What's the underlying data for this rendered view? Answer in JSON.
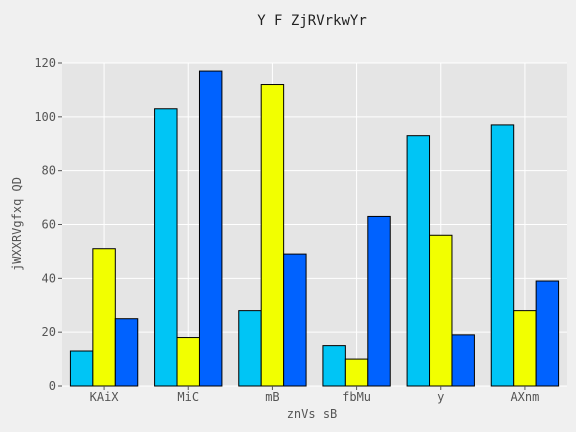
{
  "chart_data": {
    "type": "bar",
    "title": "Y F ZjRVrkwYr",
    "xlabel": "znVs sB",
    "ylabel": "jWXXRVgfxq QD",
    "categories": [
      "KAiX",
      "MiC",
      "mB",
      "fbMu",
      "y",
      "AXnm"
    ],
    "series": [
      {
        "values": [
          13,
          103,
          28,
          15,
          93,
          97
        ],
        "color": "#00c5f5"
      },
      {
        "values": [
          51,
          18,
          112,
          10,
          56,
          28
        ],
        "color": "#f2ff00"
      },
      {
        "values": [
          25,
          117,
          49,
          63,
          19,
          39
        ],
        "color": "#0062ff"
      }
    ],
    "ylim": [
      0,
      120
    ],
    "yticks": [
      "0",
      "20",
      "40",
      "60",
      "80",
      "100",
      "120"
    ],
    "grid": true,
    "legend": "none",
    "colors": {
      "figure_background": "#f0f0f0",
      "plot_background": "#e5e5e5",
      "grid": "#ffffff",
      "bar_edge": "#000000"
    }
  }
}
